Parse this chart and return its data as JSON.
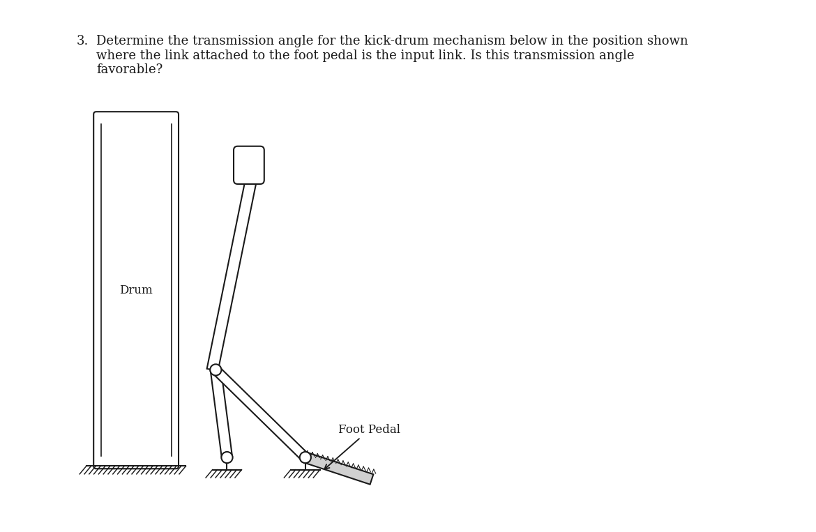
{
  "title_number": "3.",
  "title_text": "Determine the transmission angle for the kick-drum mechanism below in the position shown\nwhere the link attached to the foot pedal is the input link. Is this transmission angle\nfavorable?",
  "label_drum": "Drum",
  "label_foot_pedal": "Foot Pedal",
  "bg_color": "#ffffff",
  "line_color": "#1a1a1a",
  "fill_color": "#ffffff",
  "text_color": "#1a1a1a",
  "title_fontsize": 13,
  "label_fontsize": 12
}
